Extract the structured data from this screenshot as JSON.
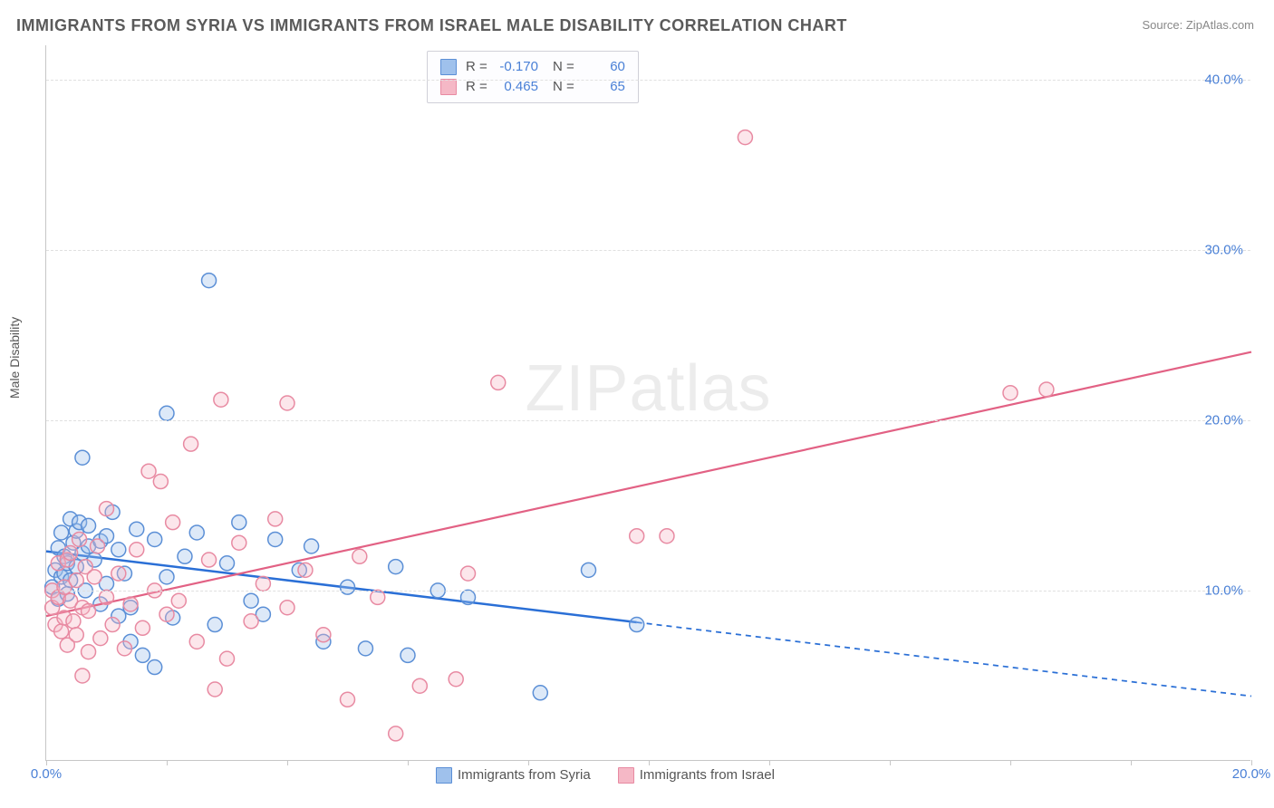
{
  "title": "IMMIGRANTS FROM SYRIA VS IMMIGRANTS FROM ISRAEL MALE DISABILITY CORRELATION CHART",
  "source": "Source: ZipAtlas.com",
  "ylabel": "Male Disability",
  "watermark": "ZIPatlas",
  "chart": {
    "type": "scatter",
    "xlim": [
      0,
      20
    ],
    "ylim": [
      0,
      42
    ],
    "y_ticks": [
      10,
      20,
      30,
      40
    ],
    "y_tick_labels": [
      "10.0%",
      "20.0%",
      "30.0%",
      "40.0%"
    ],
    "x_ticks": [
      0,
      10,
      20
    ],
    "x_tick_labels": [
      "0.0%",
      "",
      "20.0%"
    ],
    "x_minor_ticks": [
      2,
      4,
      6,
      8,
      12,
      14,
      16,
      18
    ],
    "grid_color": "#e0e0e0",
    "background_color": "#ffffff",
    "axis_color": "#c7c7c7",
    "tick_label_color": "#4a80d6",
    "tick_label_fontsize": 15,
    "marker_radius": 8,
    "marker_stroke_width": 1.5,
    "marker_fill_opacity": 0.35,
    "series": [
      {
        "name": "Immigrants from Syria",
        "color_stroke": "#5b8fd6",
        "color_fill": "#9fc1ec",
        "R": "-0.170",
        "N": "60",
        "trend": {
          "x1": 0,
          "y1": 12.3,
          "x2": 20,
          "y2": 3.8,
          "solid_until_x": 9.8,
          "color": "#2a6fd6",
          "width": 2.5
        },
        "points": [
          [
            0.1,
            10.2
          ],
          [
            0.15,
            11.2
          ],
          [
            0.2,
            12.5
          ],
          [
            0.2,
            9.5
          ],
          [
            0.25,
            10.8
          ],
          [
            0.25,
            13.4
          ],
          [
            0.3,
            11.0
          ],
          [
            0.3,
            12.0
          ],
          [
            0.35,
            9.8
          ],
          [
            0.35,
            11.6
          ],
          [
            0.4,
            14.2
          ],
          [
            0.4,
            10.6
          ],
          [
            0.45,
            12.8
          ],
          [
            0.5,
            13.5
          ],
          [
            0.5,
            11.4
          ],
          [
            0.55,
            14.0
          ],
          [
            0.6,
            17.8
          ],
          [
            0.6,
            12.2
          ],
          [
            0.65,
            10.0
          ],
          [
            0.7,
            12.6
          ],
          [
            0.7,
            13.8
          ],
          [
            0.8,
            11.8
          ],
          [
            0.9,
            12.9
          ],
          [
            0.9,
            9.2
          ],
          [
            1.0,
            10.4
          ],
          [
            1.0,
            13.2
          ],
          [
            1.1,
            14.6
          ],
          [
            1.2,
            8.5
          ],
          [
            1.2,
            12.4
          ],
          [
            1.3,
            11.0
          ],
          [
            1.4,
            7.0
          ],
          [
            1.4,
            9.0
          ],
          [
            1.5,
            13.6
          ],
          [
            1.6,
            6.2
          ],
          [
            1.8,
            5.5
          ],
          [
            1.8,
            13.0
          ],
          [
            2.0,
            20.4
          ],
          [
            2.0,
            10.8
          ],
          [
            2.1,
            8.4
          ],
          [
            2.3,
            12.0
          ],
          [
            2.5,
            13.4
          ],
          [
            2.7,
            28.2
          ],
          [
            2.8,
            8.0
          ],
          [
            3.0,
            11.6
          ],
          [
            3.2,
            14.0
          ],
          [
            3.4,
            9.4
          ],
          [
            3.6,
            8.6
          ],
          [
            3.8,
            13.0
          ],
          [
            4.2,
            11.2
          ],
          [
            4.4,
            12.6
          ],
          [
            4.6,
            7.0
          ],
          [
            5.0,
            10.2
          ],
          [
            5.3,
            6.6
          ],
          [
            5.8,
            11.4
          ],
          [
            6.0,
            6.2
          ],
          [
            6.5,
            10.0
          ],
          [
            7.0,
            9.6
          ],
          [
            8.2,
            4.0
          ],
          [
            9.0,
            11.2
          ],
          [
            9.8,
            8.0
          ]
        ]
      },
      {
        "name": "Immigrants from Israel",
        "color_stroke": "#e88aa2",
        "color_fill": "#f5b8c6",
        "R": "0.465",
        "N": "65",
        "trend": {
          "x1": 0,
          "y1": 8.5,
          "x2": 20,
          "y2": 24.0,
          "solid_until_x": 20,
          "color": "#e26184",
          "width": 2.2
        },
        "points": [
          [
            0.1,
            9.0
          ],
          [
            0.1,
            10.0
          ],
          [
            0.15,
            8.0
          ],
          [
            0.2,
            11.6
          ],
          [
            0.2,
            9.6
          ],
          [
            0.25,
            7.6
          ],
          [
            0.3,
            10.2
          ],
          [
            0.3,
            8.4
          ],
          [
            0.35,
            11.8
          ],
          [
            0.35,
            6.8
          ],
          [
            0.4,
            9.4
          ],
          [
            0.4,
            12.2
          ],
          [
            0.45,
            8.2
          ],
          [
            0.5,
            10.6
          ],
          [
            0.5,
            7.4
          ],
          [
            0.55,
            13.0
          ],
          [
            0.6,
            9.0
          ],
          [
            0.65,
            11.4
          ],
          [
            0.7,
            8.8
          ],
          [
            0.7,
            6.4
          ],
          [
            0.8,
            10.8
          ],
          [
            0.85,
            12.6
          ],
          [
            0.9,
            7.2
          ],
          [
            1.0,
            9.6
          ],
          [
            1.0,
            14.8
          ],
          [
            1.1,
            8.0
          ],
          [
            1.2,
            11.0
          ],
          [
            1.3,
            6.6
          ],
          [
            1.4,
            9.2
          ],
          [
            1.5,
            12.4
          ],
          [
            1.6,
            7.8
          ],
          [
            1.7,
            17.0
          ],
          [
            1.8,
            10.0
          ],
          [
            1.9,
            16.4
          ],
          [
            2.0,
            8.6
          ],
          [
            2.1,
            14.0
          ],
          [
            2.2,
            9.4
          ],
          [
            2.4,
            18.6
          ],
          [
            2.5,
            7.0
          ],
          [
            2.7,
            11.8
          ],
          [
            2.9,
            21.2
          ],
          [
            3.0,
            6.0
          ],
          [
            3.2,
            12.8
          ],
          [
            3.4,
            8.2
          ],
          [
            3.6,
            10.4
          ],
          [
            3.8,
            14.2
          ],
          [
            4.0,
            9.0
          ],
          [
            4.0,
            21.0
          ],
          [
            4.3,
            11.2
          ],
          [
            4.6,
            7.4
          ],
          [
            5.0,
            3.6
          ],
          [
            5.2,
            12.0
          ],
          [
            5.5,
            9.6
          ],
          [
            5.8,
            1.6
          ],
          [
            6.2,
            4.4
          ],
          [
            6.8,
            4.8
          ],
          [
            7.0,
            11.0
          ],
          [
            7.5,
            22.2
          ],
          [
            9.8,
            13.2
          ],
          [
            10.3,
            13.2
          ],
          [
            11.6,
            36.6
          ],
          [
            16.0,
            21.6
          ],
          [
            16.6,
            21.8
          ],
          [
            0.6,
            5.0
          ],
          [
            2.8,
            4.2
          ]
        ]
      }
    ],
    "legend_top": {
      "rows": [
        {
          "swatch_fill": "#9fc1ec",
          "swatch_stroke": "#5b8fd6",
          "r_label": "R =",
          "r_val": "-0.170",
          "n_label": "N =",
          "n_val": "60"
        },
        {
          "swatch_fill": "#f5b8c6",
          "swatch_stroke": "#e88aa2",
          "r_label": "R =",
          "r_val": "0.465",
          "n_label": "N =",
          "n_val": "65"
        }
      ]
    },
    "legend_bottom": [
      {
        "swatch_fill": "#9fc1ec",
        "swatch_stroke": "#5b8fd6",
        "label": "Immigrants from Syria"
      },
      {
        "swatch_fill": "#f5b8c6",
        "swatch_stroke": "#e88aa2",
        "label": "Immigrants from Israel"
      }
    ]
  }
}
